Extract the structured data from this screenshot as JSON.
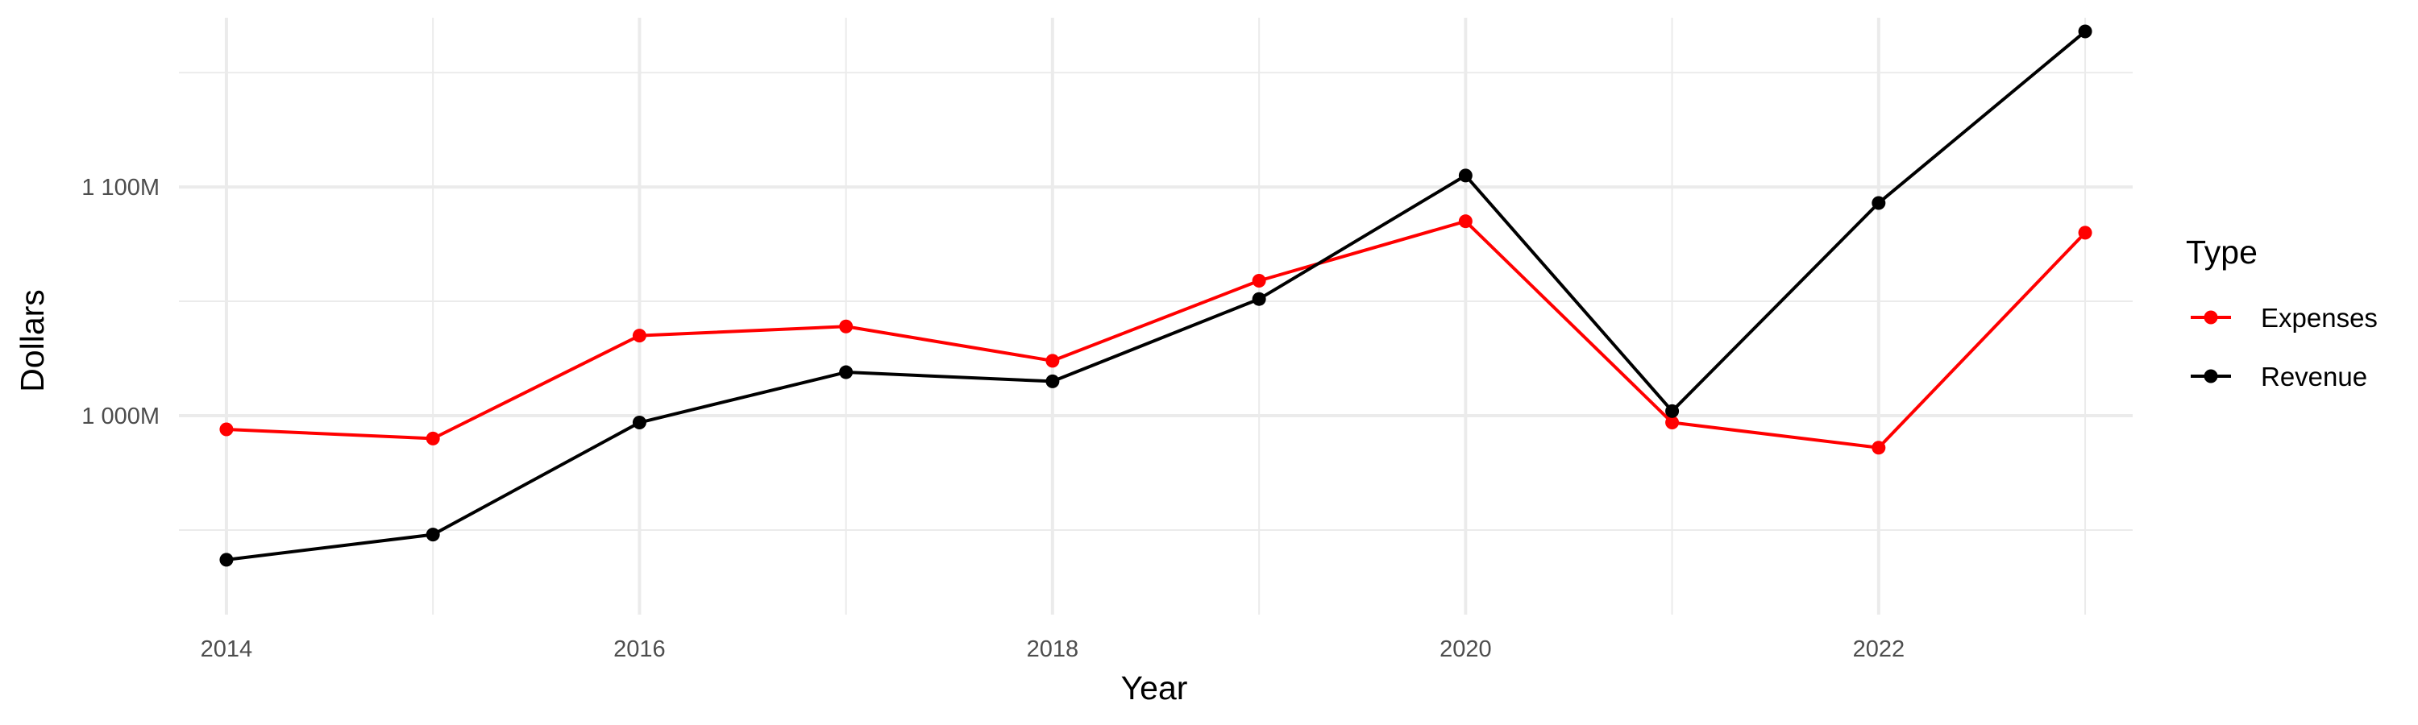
{
  "chart_data": {
    "type": "line",
    "title": "",
    "xlabel": "Year",
    "ylabel": "Dollars",
    "x": [
      2014,
      2015,
      2016,
      2017,
      2018,
      2019,
      2020,
      2021,
      2022,
      2023
    ],
    "x_ticks": [
      2014,
      2016,
      2018,
      2020,
      2022
    ],
    "y_ticks": [
      {
        "value": 1000,
        "label": "1 000M"
      },
      {
        "value": 1100,
        "label": "1 100M"
      }
    ],
    "xlim": [
      2013.77,
      2023.23
    ],
    "ylim": [
      913,
      1174
    ],
    "grid": true,
    "legend": {
      "title": "Type",
      "position": "right"
    },
    "series": [
      {
        "name": "Expenses",
        "color": "#ff0000",
        "values": [
          994,
          990,
          1035,
          1039,
          1024,
          1059,
          1085,
          997,
          986,
          1080
        ]
      },
      {
        "name": "Revenue",
        "color": "#000000",
        "values": [
          937,
          948,
          997,
          1019,
          1015,
          1051,
          1105,
          1002,
          1093,
          1168
        ]
      }
    ]
  }
}
